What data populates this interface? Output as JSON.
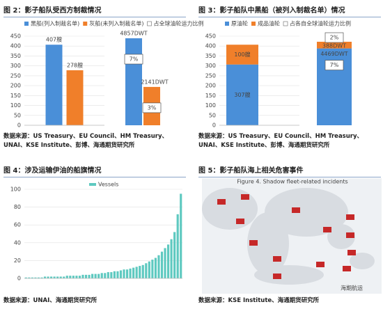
{
  "figures": [
    {
      "title": "图 2：影子船队受西方制裁情况",
      "source": "数据来源：US Treasury、EU Council、HM Treasury、UNAI、KSE Institute、彭博、海通期货研究所"
    },
    {
      "title": "图 3：影子船队中黑船（被列入制裁名单）情况",
      "source": "数据来源：US Treasury、EU Council、HM Treasury、UNAI、KSE Institute、彭博、海通期货研究所"
    },
    {
      "title": "图 4：涉及运输伊油的船旗情况",
      "source": "数据来源：UNAI、海通期货研究所"
    },
    {
      "title": "图 5：影子船队海上相关危害事件",
      "source": "数据来源：KSE Institute、海通期货研究所",
      "image_title": "Figure 4. Shadow fleet-related incidents"
    }
  ],
  "chart_data": [
    {
      "type": "bar",
      "series": [
        {
          "name": "黑船(列入制裁名单)",
          "color": "#4a8fd8",
          "values": [
            407
          ],
          "value_labels": [
            "407艘"
          ]
        },
        {
          "name": "灰船(未列入制裁名单)",
          "color": "#f07f2a",
          "values": [
            278
          ],
          "value_labels": [
            "278艘"
          ]
        }
      ],
      "legend_extra": "占全球油轮运力比例",
      "ylim": [
        0,
        450
      ],
      "yticks": [
        0,
        50,
        100,
        150,
        200,
        250,
        300,
        350,
        400,
        450
      ],
      "grid": true
    },
    {
      "type": "bar_share",
      "series": [
        {
          "color": "#4a8fd8",
          "values": [
            4857
          ],
          "value_labels": [
            "4857DWT"
          ],
          "share": [
            7
          ],
          "share_labels": [
            "7%"
          ]
        },
        {
          "color": "#f07f2a",
          "values": [
            2141
          ],
          "value_labels": [
            "2141DWT"
          ],
          "share": [
            3
          ],
          "share_labels": [
            "3%"
          ]
        }
      ]
    },
    {
      "type": "stacked_bar",
      "series": [
        {
          "name": "原油轮",
          "color": "#4a8fd8",
          "values": [
            307
          ],
          "value_labels": [
            "307艘"
          ]
        },
        {
          "name": "成品油轮",
          "color": "#f07f2a",
          "values": [
            100
          ],
          "value_labels": [
            "100艘"
          ]
        }
      ],
      "legend_extra": "占各自全球油轮运力比例",
      "ylim": [
        0,
        450
      ],
      "yticks": [
        0,
        50,
        100,
        150,
        200,
        250,
        300,
        350,
        400,
        450
      ],
      "grid": true
    },
    {
      "type": "stacked_share",
      "series": [
        {
          "color": "#4a8fd8",
          "values": [
            4469
          ],
          "value_labels": [
            "4469DWT"
          ],
          "share": [
            7
          ],
          "share_labels": [
            "7%"
          ]
        },
        {
          "color": "#f07f2a",
          "values": [
            388
          ],
          "value_labels": [
            "388DWT"
          ],
          "share": [
            2
          ],
          "share_labels": [
            "2%"
          ]
        }
      ]
    },
    {
      "type": "bar",
      "series": [
        {
          "name": "Vessels",
          "color": "#5ec9c0",
          "values": [
            1,
            1,
            1,
            1,
            1,
            1,
            2,
            2,
            2,
            2,
            2,
            2,
            2,
            3,
            3,
            3,
            3,
            3,
            4,
            4,
            4,
            5,
            5,
            5,
            6,
            6,
            7,
            7,
            8,
            8,
            9,
            10,
            10,
            11,
            12,
            13,
            14,
            15,
            17,
            19,
            21,
            23,
            26,
            30,
            34,
            38,
            44,
            52,
            72,
            95
          ]
        }
      ],
      "ylim": [
        0,
        100
      ],
      "yticks": [
        0,
        20,
        40,
        60,
        80,
        100
      ],
      "grid": true
    }
  ],
  "logo": "海期航运"
}
